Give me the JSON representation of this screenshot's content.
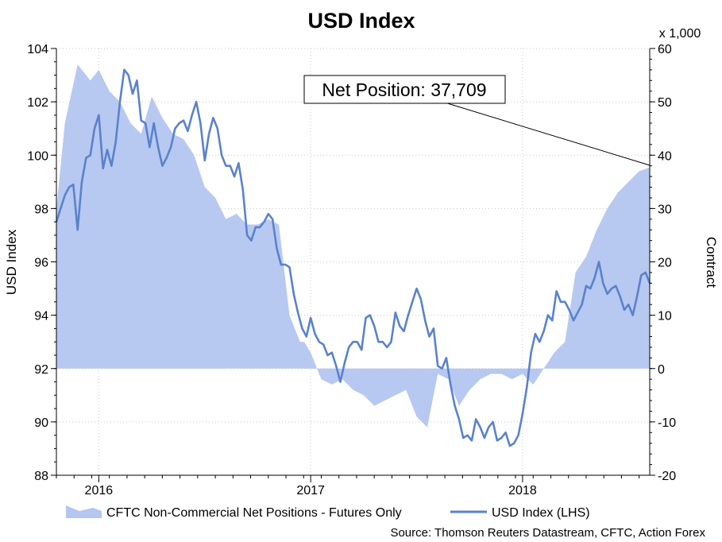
{
  "chart_data": {
    "type": "line",
    "title": "USD Index",
    "ylabel": "USD Index",
    "y2label": "Contract",
    "y2_multiplier_label": "x 1,000",
    "ylim": [
      88,
      104
    ],
    "y2lim": [
      -20,
      60
    ],
    "y_ticks": [
      "88",
      "90",
      "92",
      "94",
      "96",
      "98",
      "100",
      "102",
      "104"
    ],
    "y2_ticks": [
      "-20",
      "-10",
      "0",
      "10",
      "20",
      "30",
      "40",
      "50",
      "60"
    ],
    "x_range": [
      2015.8,
      2018.6
    ],
    "x_ticks": [
      {
        "label": "2016",
        "x": 2016.0
      },
      {
        "label": "2017",
        "x": 2017.0
      },
      {
        "label": "2018",
        "x": 2018.0
      }
    ],
    "grid": true,
    "callout": "Net Position: 37,709",
    "source": "Source: Thomson Reuters Datastream, CFTC, Action Forex",
    "series": [
      {
        "name": "CFTC Non-Commercial Net Positions - Futures Only",
        "kind": "area",
        "axis": "right",
        "color": "#b3c6f0",
        "x": [
          2015.8,
          2015.84,
          2015.9,
          2015.96,
          2016.0,
          2016.05,
          2016.1,
          2016.15,
          2016.2,
          2016.25,
          2016.3,
          2016.35,
          2016.4,
          2016.45,
          2016.5,
          2016.55,
          2016.6,
          2016.65,
          2016.7,
          2016.75,
          2016.8,
          2016.85,
          2016.9,
          2016.95,
          2016.97,
          2017.0,
          2017.05,
          2017.1,
          2017.15,
          2017.2,
          2017.25,
          2017.3,
          2017.35,
          2017.4,
          2017.45,
          2017.5,
          2017.55,
          2017.6,
          2017.65,
          2017.7,
          2017.75,
          2017.8,
          2017.85,
          2017.9,
          2017.95,
          2018.0,
          2018.05,
          2018.1,
          2018.15,
          2018.2,
          2018.25,
          2018.3,
          2018.35,
          2018.4,
          2018.45,
          2018.5,
          2018.55,
          2018.6
        ],
        "values": [
          30,
          46,
          57,
          54,
          56,
          52,
          50,
          46,
          44,
          51,
          47,
          44,
          43,
          40,
          34,
          32,
          28,
          29,
          27,
          27,
          28,
          27,
          10,
          5,
          5,
          3,
          -2,
          -3,
          -2,
          -4,
          -5,
          -7,
          -6,
          -5,
          -4,
          -9,
          -11,
          -1,
          -2,
          -7,
          -4,
          -2,
          -1,
          -1,
          -2,
          -1,
          -3,
          0,
          3,
          5,
          18,
          21,
          26,
          30,
          33,
          35,
          37,
          37.709
        ]
      },
      {
        "name": "USD Index (LHS)",
        "kind": "line",
        "axis": "left",
        "color": "#5a82cc",
        "x": [
          2015.8,
          2015.82,
          2015.84,
          2015.86,
          2015.88,
          2015.9,
          2015.92,
          2015.94,
          2015.96,
          2015.98,
          2016.0,
          2016.02,
          2016.04,
          2016.06,
          2016.08,
          2016.1,
          2016.12,
          2016.14,
          2016.16,
          2016.18,
          2016.2,
          2016.22,
          2016.24,
          2016.26,
          2016.28,
          2016.3,
          2016.32,
          2016.34,
          2016.36,
          2016.38,
          2016.4,
          2016.42,
          2016.44,
          2016.46,
          2016.48,
          2016.5,
          2016.52,
          2016.54,
          2016.56,
          2016.58,
          2016.6,
          2016.62,
          2016.64,
          2016.66,
          2016.68,
          2016.7,
          2016.72,
          2016.74,
          2016.76,
          2016.78,
          2016.8,
          2016.82,
          2016.84,
          2016.86,
          2016.88,
          2016.9,
          2016.92,
          2016.94,
          2016.96,
          2016.98,
          2017.0,
          2017.02,
          2017.04,
          2017.06,
          2017.08,
          2017.1,
          2017.12,
          2017.14,
          2017.16,
          2017.18,
          2017.2,
          2017.22,
          2017.24,
          2017.26,
          2017.28,
          2017.3,
          2017.32,
          2017.34,
          2017.36,
          2017.38,
          2017.4,
          2017.42,
          2017.44,
          2017.46,
          2017.48,
          2017.5,
          2017.52,
          2017.54,
          2017.56,
          2017.58,
          2017.6,
          2017.62,
          2017.64,
          2017.66,
          2017.68,
          2017.7,
          2017.72,
          2017.74,
          2017.76,
          2017.78,
          2017.8,
          2017.82,
          2017.84,
          2017.86,
          2017.88,
          2017.9,
          2017.92,
          2017.94,
          2017.96,
          2017.98,
          2018.0,
          2018.02,
          2018.04,
          2018.06,
          2018.08,
          2018.1,
          2018.12,
          2018.14,
          2018.16,
          2018.18,
          2018.2,
          2018.22,
          2018.24,
          2018.26,
          2018.28,
          2018.3,
          2018.32,
          2018.34,
          2018.36,
          2018.38,
          2018.4,
          2018.42,
          2018.44,
          2018.46,
          2018.48,
          2018.5,
          2018.52,
          2018.54,
          2018.56,
          2018.58,
          2018.6
        ],
        "values": [
          97.5,
          98.0,
          98.5,
          98.8,
          98.9,
          97.2,
          99.0,
          99.9,
          100.0,
          101.0,
          101.5,
          99.5,
          100.2,
          99.6,
          100.5,
          102.0,
          103.2,
          103.0,
          102.3,
          102.8,
          101.3,
          101.2,
          100.3,
          101.2,
          100.3,
          99.6,
          99.9,
          100.3,
          101.0,
          101.2,
          101.3,
          100.9,
          101.5,
          102.0,
          101.2,
          99.8,
          100.8,
          101.4,
          101.0,
          100.0,
          99.6,
          99.6,
          99.2,
          99.7,
          98.7,
          97.0,
          96.8,
          97.3,
          97.3,
          97.5,
          97.8,
          97.6,
          96.5,
          95.9,
          95.9,
          95.8,
          94.8,
          94.1,
          93.5,
          93.2,
          93.9,
          93.3,
          93.0,
          92.9,
          92.5,
          92.6,
          92.1,
          91.5,
          92.2,
          92.8,
          93.0,
          93.0,
          92.7,
          93.9,
          94.0,
          93.6,
          93.0,
          93.0,
          92.8,
          93.0,
          94.1,
          93.6,
          93.4,
          94.0,
          94.5,
          95.0,
          94.6,
          93.8,
          93.2,
          93.5,
          92.1,
          92.0,
          92.4,
          91.4,
          90.6,
          90.1,
          89.4,
          89.5,
          89.3,
          90.1,
          89.8,
          89.4,
          89.8,
          90.0,
          89.3,
          89.4,
          89.6,
          89.1,
          89.2,
          89.5,
          90.3,
          91.3,
          92.6,
          93.3,
          93.0,
          93.4,
          94.0,
          93.8,
          94.9,
          94.5,
          94.5,
          94.2,
          93.8,
          94.1,
          94.4,
          95.1,
          95.0,
          95.4,
          96.0,
          95.2,
          94.8,
          95.0,
          95.1,
          94.7,
          94.2,
          94.4,
          94.0,
          94.7,
          95.5,
          95.6,
          95.2
        ]
      }
    ]
  }
}
